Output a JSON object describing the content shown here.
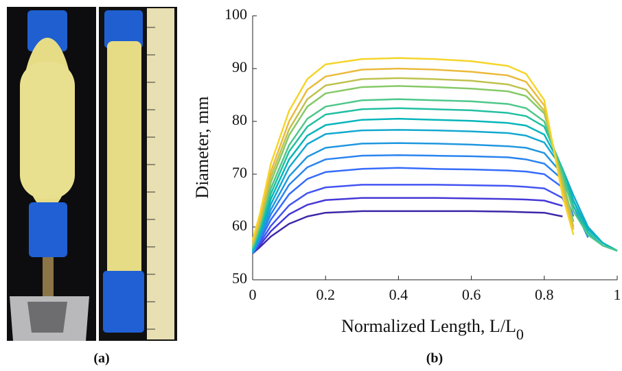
{
  "chart_data": {
    "type": "line",
    "ylabel": "Diameter, mm",
    "xlabel": "Normalized Length, L/L",
    "xlabel_subscript": "0",
    "captions": [
      "(a)",
      "(b)"
    ],
    "xlim": [
      0,
      1
    ],
    "xticks": [
      0,
      0.2,
      0.4,
      0.6,
      0.8,
      1
    ],
    "ylim": [
      50,
      100
    ],
    "yticks": [
      50,
      60,
      70,
      80,
      90,
      100
    ],
    "x": [
      0,
      0.02,
      0.05,
      0.1,
      0.15,
      0.2,
      0.3,
      0.4,
      0.5,
      0.6,
      0.7,
      0.75,
      0.8,
      0.85,
      0.88,
      0.92,
      0.96,
      1
    ],
    "series": [
      {
        "color": "#3e26a8",
        "values": [
          55,
          56.2,
          58.2,
          60.6,
          62,
          62.7,
          63,
          63,
          63,
          63,
          62.9,
          62.8,
          62.7,
          62,
          null,
          null,
          null,
          null
        ]
      },
      {
        "color": "#4538d7",
        "values": [
          55,
          56.6,
          59.2,
          62.4,
          64.2,
          65.1,
          65.5,
          65.5,
          65.5,
          65.4,
          65.3,
          65.2,
          65,
          64,
          null,
          null,
          null,
          null
        ]
      },
      {
        "color": "#4354f1",
        "values": [
          55,
          57,
          60.2,
          64.1,
          66.4,
          67.5,
          68,
          68,
          68,
          67.9,
          67.8,
          67.6,
          67.3,
          65.5,
          61,
          null,
          null,
          null
        ]
      },
      {
        "color": "#366cfc",
        "values": [
          55,
          57.4,
          61.4,
          66.2,
          69.1,
          70.4,
          71,
          71.2,
          71,
          70.9,
          70.7,
          70.5,
          70,
          67.5,
          62,
          null,
          null,
          null
        ]
      },
      {
        "color": "#2a84f0",
        "values": [
          55,
          57.8,
          62.4,
          68,
          71.3,
          72.8,
          73.5,
          73.6,
          73.5,
          73.4,
          73.2,
          72.8,
          72,
          69,
          64,
          58,
          null,
          null
        ]
      },
      {
        "color": "#1f97e0",
        "values": [
          55,
          58.1,
          63.3,
          69.6,
          73.3,
          75,
          75.8,
          75.9,
          75.8,
          75.6,
          75.3,
          75,
          74,
          70,
          65,
          59,
          56.5,
          55.5
        ]
      },
      {
        "color": "#13a8d1",
        "values": [
          55.2,
          58.5,
          64.3,
          71.3,
          75.7,
          77.6,
          78.3,
          78.4,
          78.3,
          78.1,
          77.8,
          77.3,
          76,
          71,
          66,
          60,
          57,
          55.5
        ]
      },
      {
        "color": "#05b5bb",
        "values": [
          55.5,
          59,
          65.3,
          72.8,
          77.3,
          79.3,
          80.3,
          80.5,
          80.3,
          80.1,
          79.7,
          79.2,
          77.5,
          71,
          65,
          59.5,
          57,
          55.5
        ]
      },
      {
        "color": "#22bfa2",
        "values": [
          55.7,
          59.5,
          66.3,
          74.3,
          79,
          81.3,
          82.3,
          82.5,
          82.3,
          82.1,
          81.6,
          81,
          79,
          71,
          64,
          59,
          56.5,
          55.5
        ]
      },
      {
        "color": "#4ec78a",
        "values": [
          56,
          60,
          67.3,
          75.5,
          80.5,
          82.8,
          84,
          84.2,
          84,
          83.8,
          83.3,
          82.5,
          80,
          70,
          63,
          58.5,
          56.5,
          55.5
        ]
      },
      {
        "color": "#86c968",
        "values": [
          56.3,
          60.5,
          68.5,
          77.4,
          82.8,
          85.3,
          86.5,
          86.7,
          86.5,
          86.2,
          85.7,
          84.8,
          81.5,
          69,
          61,
          null,
          null,
          null
        ]
      },
      {
        "color": "#bfc24d",
        "values": [
          56.6,
          61,
          69.5,
          78.5,
          84.2,
          86.8,
          88,
          88.2,
          88,
          87.7,
          87,
          86,
          82,
          68,
          60,
          null,
          null,
          null
        ]
      },
      {
        "color": "#eaba3d",
        "values": [
          57,
          61.5,
          70.5,
          80,
          86,
          88.5,
          89.8,
          90,
          89.8,
          89.4,
          88.7,
          87.5,
          83,
          67,
          59.5,
          null,
          null,
          null
        ]
      },
      {
        "color": "#f5d52a",
        "values": [
          57.5,
          62.5,
          72,
          82,
          88,
          90.8,
          91.8,
          92,
          91.8,
          91.4,
          90.5,
          89,
          84,
          66,
          58.5,
          null,
          null,
          null
        ]
      }
    ]
  }
}
